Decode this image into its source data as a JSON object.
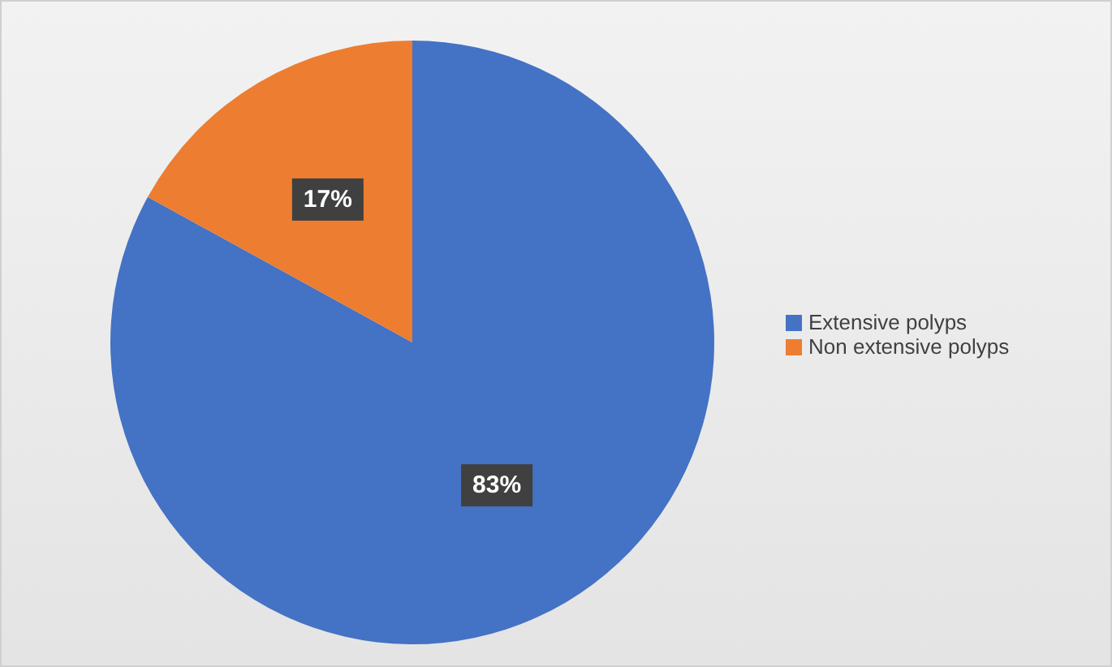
{
  "chart_data": {
    "type": "pie",
    "categories": [
      "Extensive polyps",
      "Non extensive polyps"
    ],
    "values": [
      83,
      17
    ],
    "colors": [
      "#4472c4",
      "#ed7d31"
    ],
    "value_labels": [
      "83%",
      "17%"
    ],
    "legend": "right"
  }
}
